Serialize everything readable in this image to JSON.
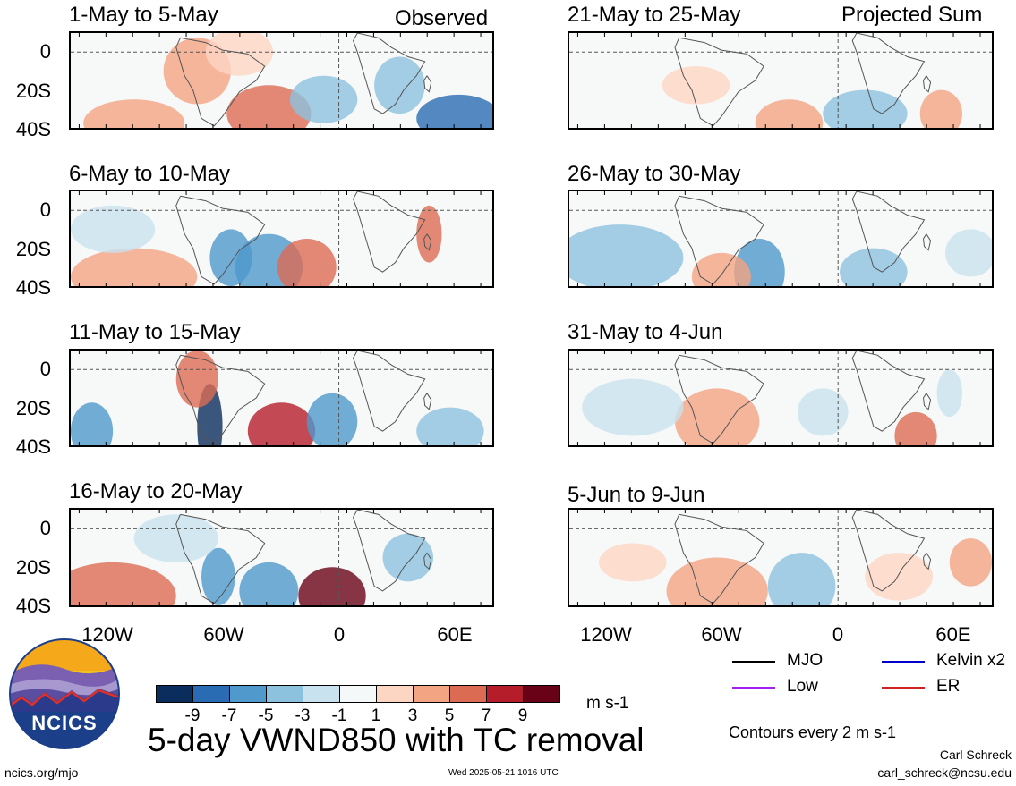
{
  "observed_label": "Observed",
  "projected_label": "Projected Sum",
  "panels_left": [
    "1-May to 5-May",
    "6-May to 10-May",
    "11-May to 15-May",
    "16-May to 20-May"
  ],
  "panels_right": [
    "21-May to 25-May",
    "26-May to 30-May",
    "31-May to 4-Jun",
    "5-Jun to 9-Jun"
  ],
  "lat_labels": [
    "0",
    "20S",
    "40S"
  ],
  "lon_labels": [
    "120W",
    "60W",
    "0",
    "60E"
  ],
  "colorbar": {
    "colors": [
      "#0b2d5e",
      "#2a6cb3",
      "#4f99cc",
      "#8cc2de",
      "#c9e2ef",
      "#f5f8f8",
      "#fcd6c3",
      "#f3a482",
      "#dc6b54",
      "#b51d2a",
      "#6a0217"
    ],
    "labels": [
      "-9",
      "-7",
      "-5",
      "-3",
      "-1",
      "1",
      "3",
      "5",
      "7",
      "9"
    ],
    "units": "m s-1"
  },
  "legend": {
    "mjo": "MJO",
    "kelvin": "Kelvin x2",
    "low": "Low",
    "er": "ER",
    "colors": {
      "mjo": "#000000",
      "kelvin": "#0000c8",
      "low": "#a020f0",
      "er": "#d02020"
    }
  },
  "contours_note": "Contours every 2 m s-1",
  "main_title": "5-day VWND850 with TC removal",
  "logo_text": "NCICS",
  "footer": {
    "url": "ncics.org/mjo",
    "timestamp": "Wed 2025-05-21 1016 UTC",
    "author": "Carl Schreck",
    "email": "carl_schreck@ncsu.edu"
  }
}
